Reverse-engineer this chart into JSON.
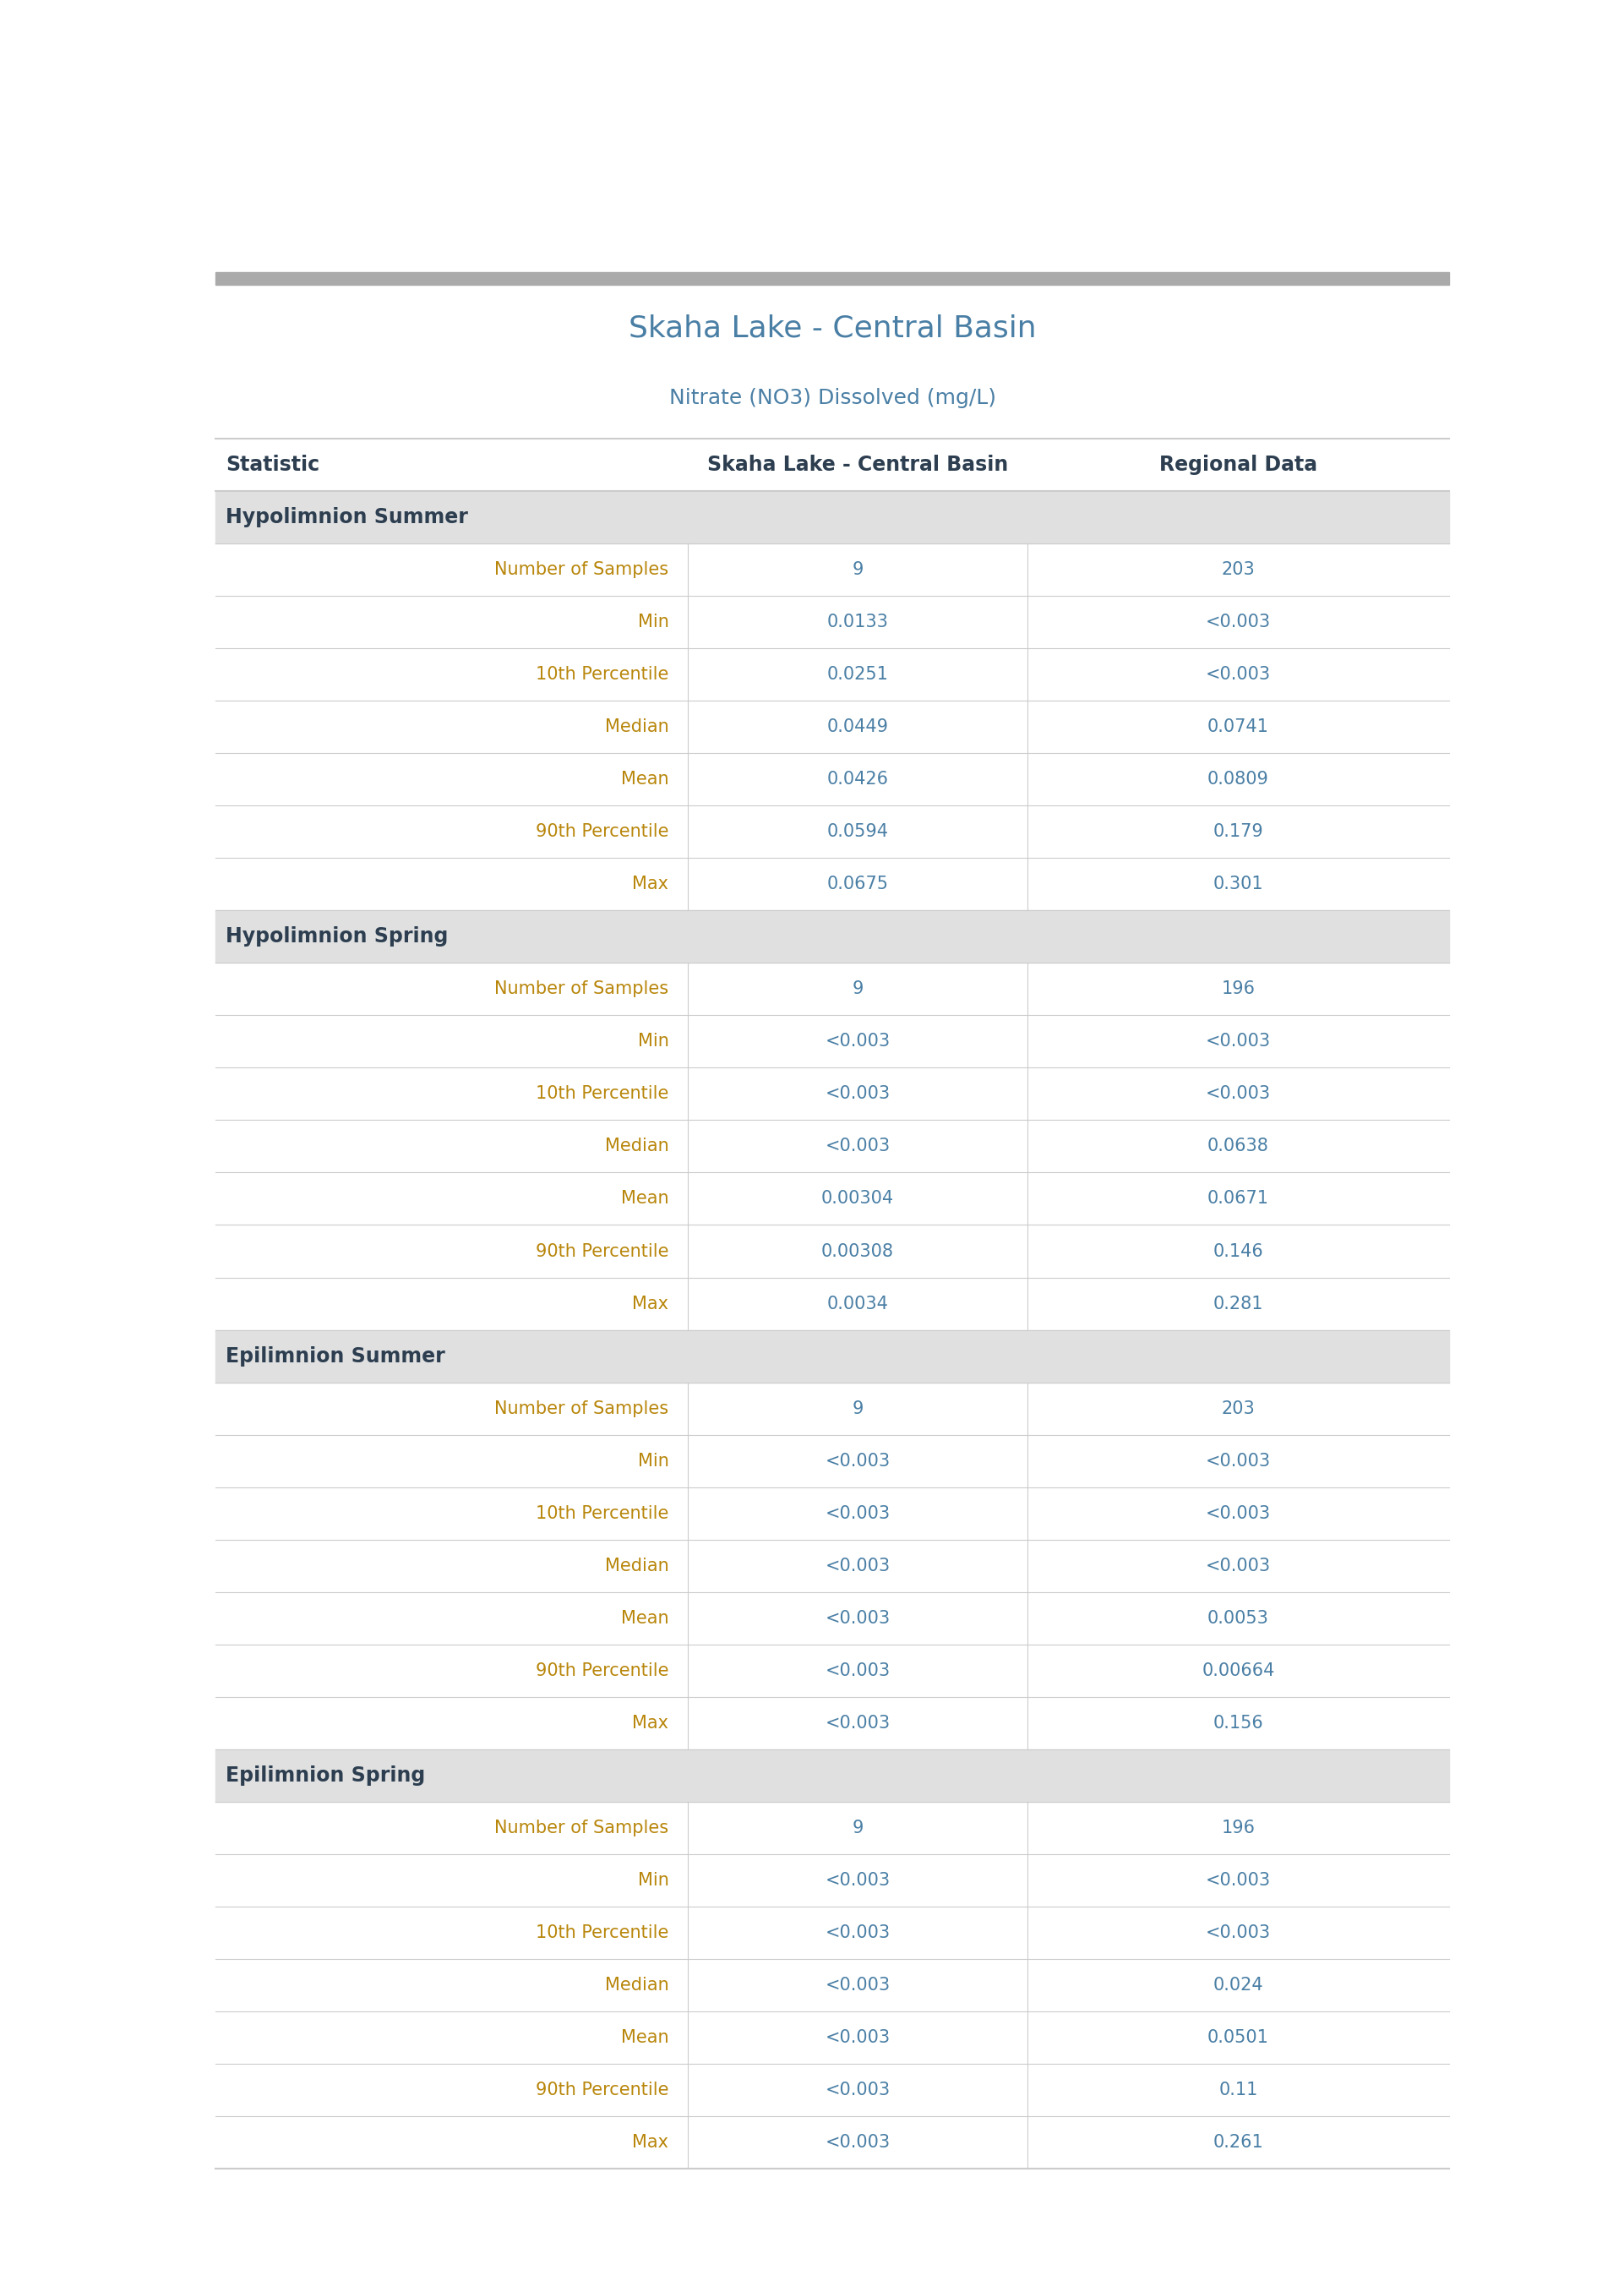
{
  "title": "Skaha Lake - Central Basin",
  "subtitle": "Nitrate (NO3) Dissolved (mg/L)",
  "title_color": "#4a7fa5",
  "subtitle_color": "#4a7fa5",
  "header_col1": "Statistic",
  "header_col2": "Skaha Lake - Central Basin",
  "header_col3": "Regional Data",
  "header_color": "#2c3e50",
  "section_bg": "#e0e0e0",
  "section_text_color": "#2c3e50",
  "row_bg": "#ffffff",
  "divider_color": "#cccccc",
  "top_bar_color": "#aaaaaa",
  "stat_color": "#b8860b",
  "value_color": "#4a7fa5",
  "sections": [
    {
      "name": "Hypolimnion Summer",
      "rows": [
        {
          "stat": "Number of Samples",
          "local": "9",
          "regional": "203"
        },
        {
          "stat": "Min",
          "local": "0.0133",
          "regional": "<0.003"
        },
        {
          "stat": "10th Percentile",
          "local": "0.0251",
          "regional": "<0.003"
        },
        {
          "stat": "Median",
          "local": "0.0449",
          "regional": "0.0741"
        },
        {
          "stat": "Mean",
          "local": "0.0426",
          "regional": "0.0809"
        },
        {
          "stat": "90th Percentile",
          "local": "0.0594",
          "regional": "0.179"
        },
        {
          "stat": "Max",
          "local": "0.0675",
          "regional": "0.301"
        }
      ]
    },
    {
      "name": "Hypolimnion Spring",
      "rows": [
        {
          "stat": "Number of Samples",
          "local": "9",
          "regional": "196"
        },
        {
          "stat": "Min",
          "local": "<0.003",
          "regional": "<0.003"
        },
        {
          "stat": "10th Percentile",
          "local": "<0.003",
          "regional": "<0.003"
        },
        {
          "stat": "Median",
          "local": "<0.003",
          "regional": "0.0638"
        },
        {
          "stat": "Mean",
          "local": "0.00304",
          "regional": "0.0671"
        },
        {
          "stat": "90th Percentile",
          "local": "0.00308",
          "regional": "0.146"
        },
        {
          "stat": "Max",
          "local": "0.0034",
          "regional": "0.281"
        }
      ]
    },
    {
      "name": "Epilimnion Summer",
      "rows": [
        {
          "stat": "Number of Samples",
          "local": "9",
          "regional": "203"
        },
        {
          "stat": "Min",
          "local": "<0.003",
          "regional": "<0.003"
        },
        {
          "stat": "10th Percentile",
          "local": "<0.003",
          "regional": "<0.003"
        },
        {
          "stat": "Median",
          "local": "<0.003",
          "regional": "<0.003"
        },
        {
          "stat": "Mean",
          "local": "<0.003",
          "regional": "0.0053"
        },
        {
          "stat": "90th Percentile",
          "local": "<0.003",
          "regional": "0.00664"
        },
        {
          "stat": "Max",
          "local": "<0.003",
          "regional": "0.156"
        }
      ]
    },
    {
      "name": "Epilimnion Spring",
      "rows": [
        {
          "stat": "Number of Samples",
          "local": "9",
          "regional": "196"
        },
        {
          "stat": "Min",
          "local": "<0.003",
          "regional": "<0.003"
        },
        {
          "stat": "10th Percentile",
          "local": "<0.003",
          "regional": "<0.003"
        },
        {
          "stat": "Median",
          "local": "<0.003",
          "regional": "0.024"
        },
        {
          "stat": "Mean",
          "local": "<0.003",
          "regional": "0.0501"
        },
        {
          "stat": "90th Percentile",
          "local": "<0.003",
          "regional": "0.11"
        },
        {
          "stat": "Max",
          "local": "<0.003",
          "regional": "0.261"
        }
      ]
    }
  ]
}
